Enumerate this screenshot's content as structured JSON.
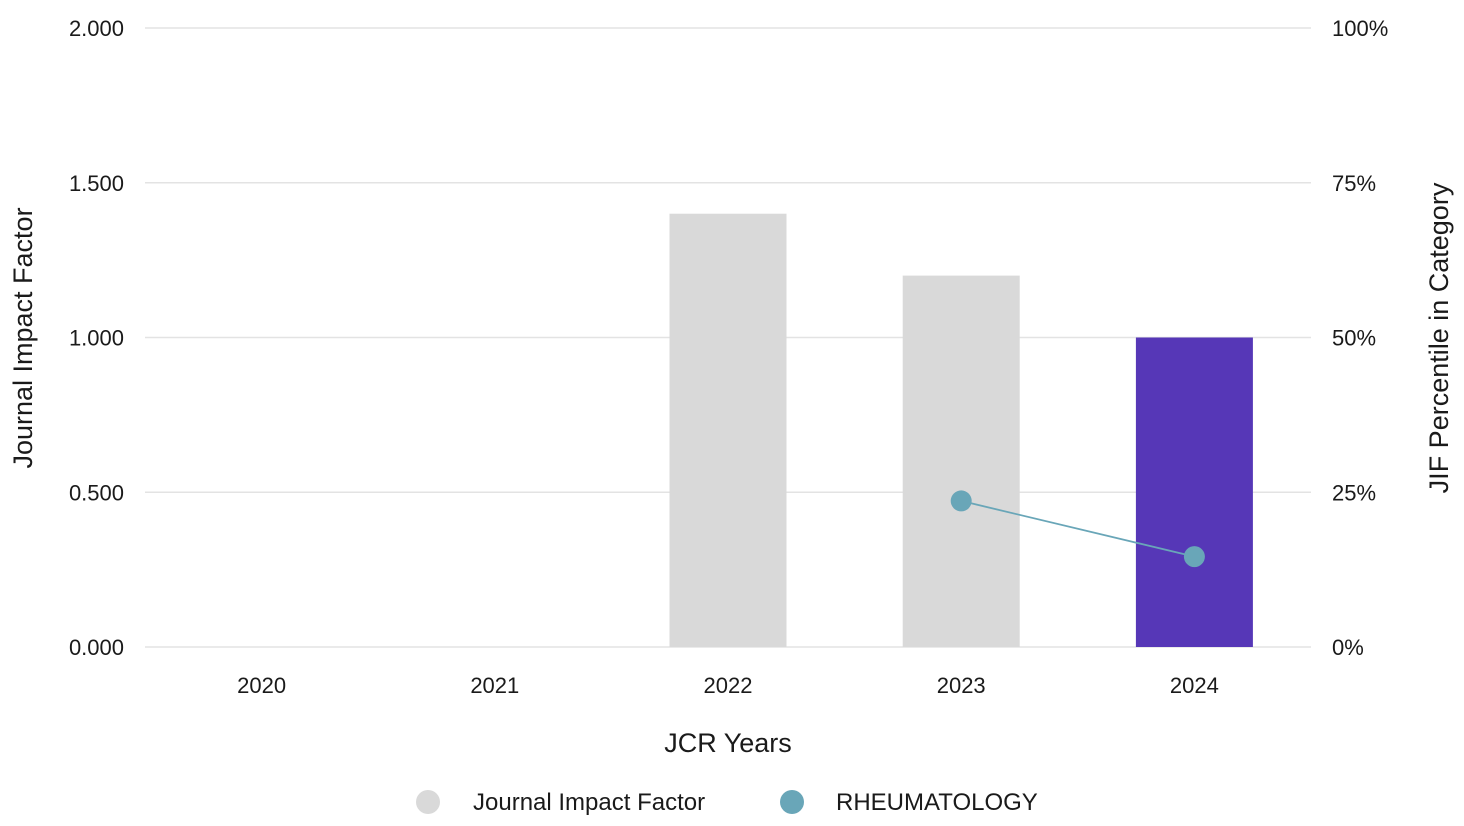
{
  "chart_data": {
    "type": "bar",
    "categories": [
      "2020",
      "2021",
      "2022",
      "2023",
      "2024"
    ],
    "xlabel": "JCR Years",
    "ylabel": "Journal Impact Factor",
    "y2label": "JIF Percentile in Category",
    "ylim": [
      0,
      2
    ],
    "y2lim": [
      0,
      100
    ],
    "yticks": [
      "0.000",
      "0.500",
      "1.000",
      "1.500",
      "2.000"
    ],
    "y2ticks": [
      "0%",
      "25%",
      "50%",
      "75%",
      "100%"
    ],
    "grid": true,
    "legend_position": "bottom",
    "series": [
      {
        "name": "Journal Impact Factor",
        "kind": "bar",
        "axis": "left",
        "values": [
          null,
          null,
          1.4,
          1.2,
          1.0
        ],
        "colors": [
          "#d9d9d9",
          "#d9d9d9",
          "#d9d9d9",
          "#d9d9d9",
          "#5637b7"
        ],
        "legend_color": "#d9d9d9"
      },
      {
        "name": "RHEUMATOLOGY",
        "kind": "line",
        "axis": "right",
        "values": [
          null,
          null,
          null,
          23.6,
          14.6
        ],
        "color": "#69a6b8"
      }
    ]
  }
}
